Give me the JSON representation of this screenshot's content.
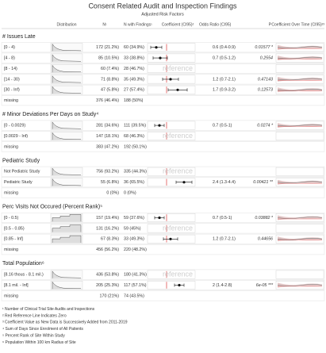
{
  "header": {
    "title": "Consent Related Audit and Inspection Findings",
    "subtitle": "Adjusted Risk Factors"
  },
  "columns": [
    "Distribution",
    "N¹",
    "N with Findings¹",
    "Coefficient (CI95)²",
    "Odds Ratio (CI95)",
    "P",
    "Coefficient Over Time (CI95)²³"
  ],
  "sections": [
    {
      "title": "# Issues Late",
      "rows": [
        {
          "label": "[0 - 4)",
          "n": "172 (21.2%)",
          "n_findings": "60 (34.9%)",
          "odds_ratio": "0.6 (0.4-0.9)",
          "p": "0.01577 *"
        },
        {
          "label": "[4 - 8)",
          "n": "85 (10.5%)",
          "n_findings": "33 (38.8%)",
          "odds_ratio": "0.7 (0.5-1.2)",
          "p": "0.2554"
        },
        {
          "label": "[8 - 14)",
          "n": "60 (7.4%)",
          "n_findings": "28 (46.7%)",
          "coefficient": "reference"
        },
        {
          "label": "[14 - 30)",
          "n": "71 (8.8%)",
          "n_findings": "35 (49.3%)",
          "odds_ratio": "1.2 (0.7-2.1)",
          "p": "0.47143"
        },
        {
          "label": "[30 - Inf)",
          "n": "47 (5.8%)",
          "n_findings": "27 (57.4%)",
          "odds_ratio": "1.7 (0.9-3.2)",
          "p": "0.12573"
        },
        {
          "label": "missing",
          "n": "376 (46.4%)",
          "n_findings": "188 (50%)"
        }
      ]
    },
    {
      "title": "# Minor Deviations Per Days on Study⁴",
      "rows": [
        {
          "label": "[0 - 0.0029)",
          "n": "281 (34.6%)",
          "n_findings": "111 (39.5%)",
          "odds_ratio": "0.7 (0.5-1)",
          "p": "0.0274 *"
        },
        {
          "label": "[0.0029 - Inf)",
          "n": "147 (18.1%)",
          "n_findings": "68 (46.3%)",
          "coefficient": "reference"
        },
        {
          "label": "missing",
          "n": "383 (47.2%)",
          "n_findings": "192 (50.1%)"
        }
      ]
    },
    {
      "title": "Pediatric Study",
      "rows": [
        {
          "label": "Not Pediatric Study",
          "n": "756 (93.2%)",
          "n_findings": "335 (44.3%)",
          "coefficient": "reference"
        },
        {
          "label": "Pediatric Study",
          "n": "55 (6.8%)",
          "n_findings": "36 (65.5%)",
          "odds_ratio": "2.4 (1.3-4.4)",
          "p": "0.00421 **"
        },
        {
          "label": "missing",
          "n": "0 (0%)",
          "n_findings": "0 (0%)"
        }
      ]
    },
    {
      "title": "Perc Visits Not Occured (Percent Rank)⁵",
      "rows": [
        {
          "label": "[0 - 0.5)",
          "n": "157 (19.4%)",
          "n_findings": "59 (37.6%)",
          "odds_ratio": "0.7 (0.5-1)",
          "p": "0.03882 *"
        },
        {
          "label": "[0.5 - 0.85)",
          "n": "131 (16.2%)",
          "n_findings": "59 (45%)",
          "coefficient": "reference"
        },
        {
          "label": "[0.85 - Inf]",
          "n": "67 (8.3%)",
          "n_findings": "33 (49.3%)",
          "odds_ratio": "1.2 (0.7-2.1)",
          "p": "0.44656"
        },
        {
          "label": "missing",
          "n": "456 (56.2%)",
          "n_findings": "220 (48.2%)"
        }
      ]
    },
    {
      "title": "Total Population⁶",
      "rows": [
        {
          "label": "[8.16 thous - 8.1 mil.)",
          "n": "436 (53.8%)",
          "n_findings": "180 (41.3%)",
          "coefficient": "reference"
        },
        {
          "label": "[8.1 mil. - Inf]",
          "n": "205 (25.3%)",
          "n_findings": "117 (57.1%)",
          "odds_ratio": "2 (1.4-2.8)",
          "p": "6e-05 ***"
        },
        {
          "label": "missing",
          "n": "170 (21%)",
          "n_findings": "74 (43.5%)"
        }
      ]
    }
  ],
  "footnotes": [
    "¹ Number of Clinical Trial Site Audits and Inspections",
    "² Red Reference Line Indicates Zero",
    "³ Coefficient Value as New Data is Successively Added from 2011-2019",
    "⁴ Sum of Days Since Enrolment of All Patients",
    "⁵ Percent Rank of Site Within Study",
    "⁶ Population Within 100 km Radius of Site"
  ]
}
